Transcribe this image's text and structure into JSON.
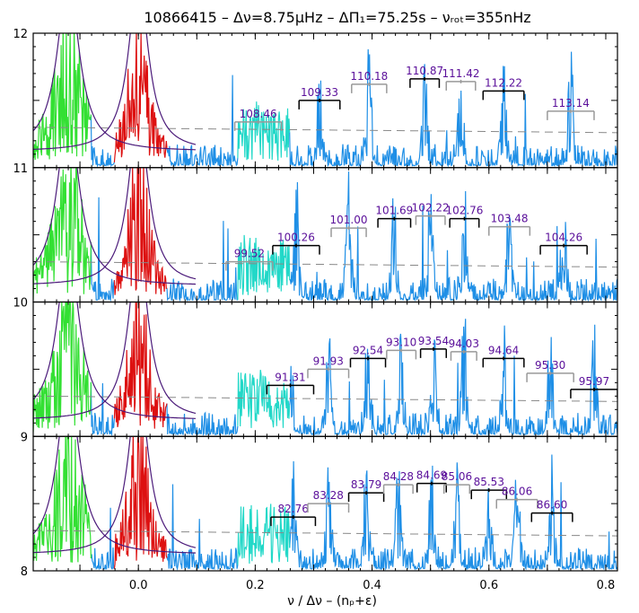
{
  "chart_data": {
    "type": "line",
    "title": "10866415  –  Δν=8.75μHz  –  ΔΠ₁=75.25s  –  νᵣₒₜ=355nHz",
    "xlabel": "ν / Δν – (nₚ+ε)",
    "xlim": [
      -0.18,
      0.82
    ],
    "x_ticks": [
      "0.0",
      "0.2",
      "0.4",
      "0.6",
      "0.8"
    ],
    "x_tick_values": [
      0.0,
      0.2,
      0.4,
      0.6,
      0.8
    ],
    "y_ticks": [
      "8",
      "9",
      "10",
      "11",
      "12"
    ],
    "grid": false,
    "colors": {
      "spectrum": "#1f8fe6",
      "l2_modes": "#33e033",
      "l0_modes": "#dd1111",
      "l3_region": "#22d8c8",
      "lorentz_fit": "#4b1a7a",
      "background_fit": "#888888",
      "period_label": "#5a0f9a",
      "bracket_dark": "#000000",
      "bracket_light": "#999999"
    },
    "panels": [
      {
        "y_range": [
          11,
          12
        ],
        "mixed_modes": [
          {
            "period": "108.46",
            "center": 0.205,
            "half_width": 0.04,
            "level": 0.34,
            "bracket": "light"
          },
          {
            "period": "109.33",
            "center": 0.31,
            "half_width": 0.035,
            "level": 0.5,
            "bracket": "dark"
          },
          {
            "period": "110.18",
            "center": 0.395,
            "half_width": 0.03,
            "level": 0.62,
            "bracket": "light"
          },
          {
            "period": "110.87",
            "center": 0.49,
            "half_width": 0.025,
            "level": 0.66,
            "bracket": "dark"
          },
          {
            "period": "111.42",
            "center": 0.552,
            "half_width": 0.025,
            "level": 0.64,
            "bracket": "light"
          },
          {
            "period": "112.22",
            "center": 0.625,
            "half_width": 0.035,
            "level": 0.57,
            "bracket": "dark"
          },
          {
            "period": "113.14",
            "center": 0.74,
            "half_width": 0.04,
            "level": 0.42,
            "bracket": "light"
          }
        ]
      },
      {
        "y_range": [
          10,
          11
        ],
        "mixed_modes": [
          {
            "period": "99.52",
            "center": 0.19,
            "half_width": 0.04,
            "level": 0.3,
            "bracket": "light"
          },
          {
            "period": "100.26",
            "center": 0.27,
            "half_width": 0.04,
            "level": 0.42,
            "bracket": "dark"
          },
          {
            "period": "101.00",
            "center": 0.36,
            "half_width": 0.03,
            "level": 0.55,
            "bracket": "light"
          },
          {
            "period": "101.69",
            "center": 0.438,
            "half_width": 0.028,
            "level": 0.62,
            "bracket": "dark"
          },
          {
            "period": "102.22",
            "center": 0.5,
            "half_width": 0.025,
            "level": 0.64,
            "bracket": "light"
          },
          {
            "period": "102.76",
            "center": 0.558,
            "half_width": 0.025,
            "level": 0.62,
            "bracket": "dark"
          },
          {
            "period": "103.48",
            "center": 0.635,
            "half_width": 0.035,
            "level": 0.56,
            "bracket": "light"
          },
          {
            "period": "104.26",
            "center": 0.728,
            "half_width": 0.04,
            "level": 0.42,
            "bracket": "dark"
          }
        ]
      },
      {
        "y_range": [
          9,
          10
        ],
        "mixed_modes": [
          {
            "period": "91.31",
            "center": 0.26,
            "half_width": 0.04,
            "level": 0.38,
            "bracket": "dark"
          },
          {
            "period": "91.93",
            "center": 0.325,
            "half_width": 0.035,
            "level": 0.5,
            "bracket": "light"
          },
          {
            "period": "92.54",
            "center": 0.393,
            "half_width": 0.03,
            "level": 0.58,
            "bracket": "dark"
          },
          {
            "period": "93.10",
            "center": 0.45,
            "half_width": 0.025,
            "level": 0.64,
            "bracket": "light"
          },
          {
            "period": "93.54",
            "center": 0.505,
            "half_width": 0.022,
            "level": 0.65,
            "bracket": "dark"
          },
          {
            "period": "94.03",
            "center": 0.557,
            "half_width": 0.022,
            "level": 0.63,
            "bracket": "light"
          },
          {
            "period": "94.64",
            "center": 0.625,
            "half_width": 0.035,
            "level": 0.58,
            "bracket": "dark"
          },
          {
            "period": "95.30",
            "center": 0.705,
            "half_width": 0.04,
            "level": 0.47,
            "bracket": "light"
          },
          {
            "period": "95.97",
            "center": 0.78,
            "half_width": 0.04,
            "level": 0.35,
            "bracket": "dark"
          }
        ]
      },
      {
        "y_range": [
          8,
          9
        ],
        "mixed_modes": [
          {
            "period": "82.76",
            "center": 0.265,
            "half_width": 0.038,
            "level": 0.4,
            "bracket": "dark"
          },
          {
            "period": "83.28",
            "center": 0.325,
            "half_width": 0.035,
            "level": 0.5,
            "bracket": "light"
          },
          {
            "period": "83.79",
            "center": 0.39,
            "half_width": 0.03,
            "level": 0.58,
            "bracket": "dark"
          },
          {
            "period": "84.28",
            "center": 0.445,
            "half_width": 0.025,
            "level": 0.64,
            "bracket": "light"
          },
          {
            "period": "84.69",
            "center": 0.502,
            "half_width": 0.025,
            "level": 0.65,
            "bracket": "dark"
          },
          {
            "period": "85.06",
            "center": 0.545,
            "half_width": 0.022,
            "level": 0.64,
            "bracket": "light"
          },
          {
            "period": "85.53",
            "center": 0.6,
            "half_width": 0.03,
            "level": 0.6,
            "bracket": "dark"
          },
          {
            "period": "86.06",
            "center": 0.648,
            "half_width": 0.035,
            "level": 0.53,
            "bracket": "light"
          },
          {
            "period": "86.60",
            "center": 0.708,
            "half_width": 0.035,
            "level": 0.43,
            "bracket": "dark"
          }
        ]
      }
    ],
    "mode_regions": {
      "l2_center": -0.12,
      "l0_center": 0.0,
      "l3_center": 0.22
    }
  }
}
